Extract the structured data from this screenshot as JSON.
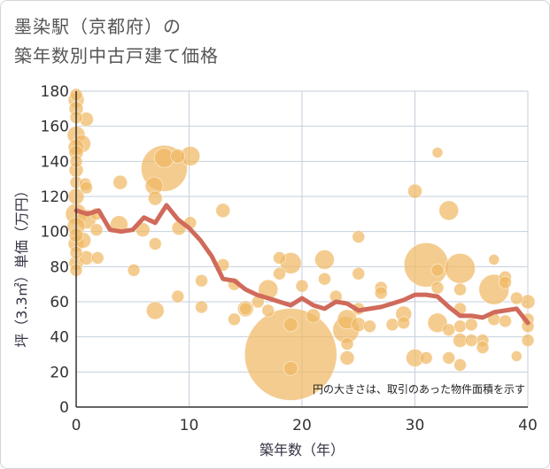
{
  "title": {
    "line1": "墨染駅（京都府）の",
    "line2": "築年数別中古戸建て価格"
  },
  "colors": {
    "bubble": "#f0b964",
    "line": "#d06a5b",
    "grid": "#c5cfdb",
    "axis": "#333333"
  },
  "chart_data": {
    "type": "scatter",
    "xlabel": "築年数（年）",
    "ylabel": "坪（3.3㎡）単価（万円）",
    "xlim": [
      0,
      40
    ],
    "ylim": [
      0,
      180
    ],
    "x_ticks": [
      0,
      10,
      20,
      30,
      40
    ],
    "y_ticks": [
      0,
      20,
      40,
      60,
      80,
      100,
      120,
      140,
      160,
      180
    ],
    "grid": true,
    "annotation": "円の大きさは、取引のあった物件面積を示す",
    "series": [
      {
        "type": "bubble",
        "points": [
          {
            "x": 0,
            "y": 178,
            "s": 7
          },
          {
            "x": 0,
            "y": 175,
            "s": 9
          },
          {
            "x": 0,
            "y": 170,
            "s": 8
          },
          {
            "x": 0,
            "y": 165,
            "s": 7
          },
          {
            "x": 0,
            "y": 155,
            "s": 10
          },
          {
            "x": 0,
            "y": 148,
            "s": 9
          },
          {
            "x": 0,
            "y": 145,
            "s": 8
          },
          {
            "x": 0,
            "y": 140,
            "s": 7
          },
          {
            "x": 0,
            "y": 135,
            "s": 8
          },
          {
            "x": 0,
            "y": 128,
            "s": 7
          },
          {
            "x": 0,
            "y": 120,
            "s": 9
          },
          {
            "x": 0,
            "y": 110,
            "s": 12
          },
          {
            "x": 0,
            "y": 103,
            "s": 10
          },
          {
            "x": 0,
            "y": 98,
            "s": 8
          },
          {
            "x": 0,
            "y": 93,
            "s": 9
          },
          {
            "x": 0,
            "y": 88,
            "s": 7
          },
          {
            "x": 0,
            "y": 82,
            "s": 8
          },
          {
            "x": 0,
            "y": 78,
            "s": 7
          },
          {
            "x": 0.5,
            "y": 150,
            "s": 10
          },
          {
            "x": 0.6,
            "y": 95,
            "s": 9
          },
          {
            "x": 0.8,
            "y": 127,
            "s": 7
          },
          {
            "x": 0.9,
            "y": 164,
            "s": 8
          },
          {
            "x": 0.9,
            "y": 125,
            "s": 7
          },
          {
            "x": 0.9,
            "y": 107,
            "s": 11
          },
          {
            "x": 0.9,
            "y": 85,
            "s": 8
          },
          {
            "x": 1.8,
            "y": 110,
            "s": 7
          },
          {
            "x": 1.8,
            "y": 101,
            "s": 7
          },
          {
            "x": 1.9,
            "y": 85,
            "s": 7
          },
          {
            "x": 3.8,
            "y": 104,
            "s": 10
          },
          {
            "x": 3.9,
            "y": 128,
            "s": 8
          },
          {
            "x": 5.1,
            "y": 78,
            "s": 7
          },
          {
            "x": 5.9,
            "y": 101,
            "s": 8
          },
          {
            "x": 6.9,
            "y": 126,
            "s": 10
          },
          {
            "x": 7.0,
            "y": 119,
            "s": 8
          },
          {
            "x": 7.0,
            "y": 93,
            "s": 7
          },
          {
            "x": 7.0,
            "y": 55,
            "s": 10
          },
          {
            "x": 7.8,
            "y": 142,
            "s": 11
          },
          {
            "x": 7.8,
            "y": 136,
            "s": 26
          },
          {
            "x": 9.0,
            "y": 143,
            "s": 8
          },
          {
            "x": 9.1,
            "y": 102,
            "s": 8
          },
          {
            "x": 9.0,
            "y": 63,
            "s": 7
          },
          {
            "x": 10.1,
            "y": 143,
            "s": 11
          },
          {
            "x": 10.1,
            "y": 105,
            "s": 7
          },
          {
            "x": 11.1,
            "y": 72,
            "s": 7
          },
          {
            "x": 11.1,
            "y": 57,
            "s": 7
          },
          {
            "x": 13.0,
            "y": 112,
            "s": 8
          },
          {
            "x": 13.0,
            "y": 81,
            "s": 7
          },
          {
            "x": 14.0,
            "y": 70,
            "s": 7
          },
          {
            "x": 14.0,
            "y": 50,
            "s": 7
          },
          {
            "x": 15.0,
            "y": 56,
            "s": 9
          },
          {
            "x": 15.0,
            "y": 56,
            "s": 7
          },
          {
            "x": 16.1,
            "y": 60,
            "s": 7
          },
          {
            "x": 17.0,
            "y": 67,
            "s": 11
          },
          {
            "x": 17.0,
            "y": 55,
            "s": 7
          },
          {
            "x": 18.0,
            "y": 85,
            "s": 7
          },
          {
            "x": 18.0,
            "y": 76,
            "s": 7
          },
          {
            "x": 19.0,
            "y": 82,
            "s": 12
          },
          {
            "x": 19.0,
            "y": 47,
            "s": 8
          },
          {
            "x": 19.0,
            "y": 22,
            "s": 8
          },
          {
            "x": 19.0,
            "y": 30,
            "s": 52
          },
          {
            "x": 20.0,
            "y": 69,
            "s": 7
          },
          {
            "x": 21.0,
            "y": 52,
            "s": 8
          },
          {
            "x": 22.0,
            "y": 84,
            "s": 11
          },
          {
            "x": 22.0,
            "y": 73,
            "s": 7
          },
          {
            "x": 23.0,
            "y": 63,
            "s": 7
          },
          {
            "x": 23.9,
            "y": 44,
            "s": 15
          },
          {
            "x": 24.0,
            "y": 50,
            "s": 11
          },
          {
            "x": 24.0,
            "y": 28,
            "s": 8
          },
          {
            "x": 24.0,
            "y": 36,
            "s": 7
          },
          {
            "x": 25.0,
            "y": 97,
            "s": 7
          },
          {
            "x": 25.0,
            "y": 76,
            "s": 7
          },
          {
            "x": 25.0,
            "y": 56,
            "s": 7
          },
          {
            "x": 25.0,
            "y": 47,
            "s": 8
          },
          {
            "x": 26.0,
            "y": 46,
            "s": 7
          },
          {
            "x": 27.0,
            "y": 68,
            "s": 7
          },
          {
            "x": 27.0,
            "y": 65,
            "s": 7
          },
          {
            "x": 28.0,
            "y": 47,
            "s": 7
          },
          {
            "x": 29.0,
            "y": 53,
            "s": 9
          },
          {
            "x": 29.0,
            "y": 48,
            "s": 7
          },
          {
            "x": 30.0,
            "y": 123,
            "s": 8
          },
          {
            "x": 30.0,
            "y": 28,
            "s": 10
          },
          {
            "x": 31.0,
            "y": 81,
            "s": 25
          },
          {
            "x": 31.0,
            "y": 28,
            "s": 7
          },
          {
            "x": 32.0,
            "y": 145,
            "s": 6
          },
          {
            "x": 32.0,
            "y": 78,
            "s": 7
          },
          {
            "x": 32.0,
            "y": 68,
            "s": 7
          },
          {
            "x": 32.0,
            "y": 48,
            "s": 11
          },
          {
            "x": 33.0,
            "y": 112,
            "s": 11
          },
          {
            "x": 33.0,
            "y": 44,
            "s": 7
          },
          {
            "x": 33.0,
            "y": 28,
            "s": 7
          },
          {
            "x": 34.0,
            "y": 79,
            "s": 17
          },
          {
            "x": 34.0,
            "y": 67,
            "s": 7
          },
          {
            "x": 34.0,
            "y": 56,
            "s": 7
          },
          {
            "x": 34.0,
            "y": 46,
            "s": 7
          },
          {
            "x": 34.0,
            "y": 38,
            "s": 8
          },
          {
            "x": 34.0,
            "y": 24,
            "s": 7
          },
          {
            "x": 35.0,
            "y": 47,
            "s": 7
          },
          {
            "x": 35.0,
            "y": 38,
            "s": 7
          },
          {
            "x": 36.0,
            "y": 38,
            "s": 7
          },
          {
            "x": 36.0,
            "y": 34,
            "s": 7
          },
          {
            "x": 37.0,
            "y": 84,
            "s": 6
          },
          {
            "x": 37.0,
            "y": 67,
            "s": 17
          },
          {
            "x": 37.0,
            "y": 50,
            "s": 7
          },
          {
            "x": 38.0,
            "y": 74,
            "s": 7
          },
          {
            "x": 38.0,
            "y": 71,
            "s": 7
          },
          {
            "x": 38.0,
            "y": 49,
            "s": 7
          },
          {
            "x": 39.0,
            "y": 62,
            "s": 7
          },
          {
            "x": 39.0,
            "y": 29,
            "s": 6
          },
          {
            "x": 40.0,
            "y": 60,
            "s": 8
          },
          {
            "x": 40.0,
            "y": 50,
            "s": 7
          },
          {
            "x": 40.0,
            "y": 46,
            "s": 7
          },
          {
            "x": 40.0,
            "y": 38,
            "s": 7
          }
        ]
      },
      {
        "type": "line",
        "x": [
          0,
          1,
          2,
          3,
          4,
          5,
          6,
          7,
          8,
          9,
          10,
          11,
          12,
          13,
          14,
          15,
          16,
          17,
          18,
          19,
          20,
          21,
          22,
          23,
          24,
          25,
          26,
          27,
          28,
          29,
          30,
          31,
          32,
          33,
          34,
          35,
          36,
          37,
          38,
          39,
          40
        ],
        "y": [
          112,
          110,
          112,
          101,
          100,
          101,
          108,
          105,
          115,
          107,
          102,
          95,
          86,
          73,
          72,
          67,
          64,
          62,
          60,
          58,
          62,
          58,
          56,
          60,
          59,
          55,
          56,
          57,
          59,
          61,
          64,
          64,
          63,
          57,
          52,
          52,
          51,
          54,
          55,
          56,
          48
        ]
      }
    ]
  }
}
